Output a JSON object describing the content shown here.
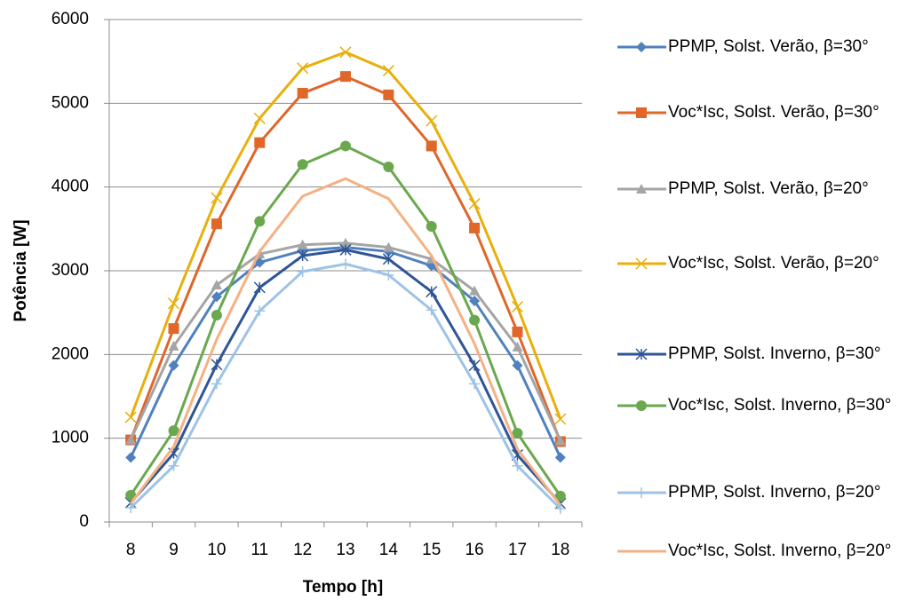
{
  "chart_data": {
    "type": "line",
    "x_label": "Tempo [h]",
    "y_label": "Potência [W]",
    "categories": [
      "8",
      "9",
      "10",
      "11",
      "12",
      "13",
      "14",
      "15",
      "16",
      "17",
      "18"
    ],
    "ylim": [
      0,
      6000
    ],
    "yticks": [
      0,
      1000,
      2000,
      3000,
      4000,
      5000,
      6000
    ],
    "grid": true,
    "series": [
      {
        "name": "PPMP, Solst. Verão, β=30°",
        "color": "#4f81bd",
        "marker": "diamond",
        "values": [
          770,
          1870,
          2690,
          3100,
          3240,
          3280,
          3230,
          3060,
          2640,
          1870,
          770
        ]
      },
      {
        "name": "Voc*Isc, Solst. Verão, β=30°",
        "color": "#e0662a",
        "marker": "square",
        "values": [
          980,
          2310,
          3560,
          4530,
          5120,
          5320,
          5100,
          4490,
          3510,
          2270,
          960
        ]
      },
      {
        "name": "PPMP, Solst. Verão, β=20°",
        "color": "#a5a5a5",
        "marker": "triangle",
        "values": [
          980,
          2100,
          2830,
          3200,
          3310,
          3330,
          3280,
          3140,
          2760,
          2090,
          970
        ]
      },
      {
        "name": "Voc*Isc, Solst. Verão, β=20°",
        "color": "#e8b00c",
        "marker": "x",
        "values": [
          1250,
          2610,
          3870,
          4820,
          5420,
          5610,
          5390,
          4790,
          3800,
          2570,
          1230
        ]
      },
      {
        "name": "PPMP, Solst. Inverno, β=30°",
        "color": "#2f5597",
        "marker": "star",
        "values": [
          230,
          820,
          1880,
          2800,
          3180,
          3250,
          3140,
          2750,
          1870,
          800,
          220
        ]
      },
      {
        "name": "Voc*Isc, Solst. Inverno, β=30°",
        "color": "#6aa84f",
        "marker": "circle",
        "values": [
          320,
          1090,
          2470,
          3590,
          4270,
          4490,
          4240,
          3530,
          2410,
          1060,
          310
        ]
      },
      {
        "name": "PPMP, Solst. Inverno, β=20°",
        "color": "#9dc3e6",
        "marker": "plus",
        "values": [
          170,
          670,
          1650,
          2520,
          2990,
          3080,
          2950,
          2530,
          1650,
          670,
          160
        ]
      },
      {
        "name": "Voc*Isc, Solst. Inverno, β=20°",
        "color": "#f4b183",
        "marker": "none",
        "values": [
          220,
          900,
          2180,
          3230,
          3890,
          4100,
          3860,
          3180,
          2130,
          870,
          200
        ]
      }
    ]
  }
}
